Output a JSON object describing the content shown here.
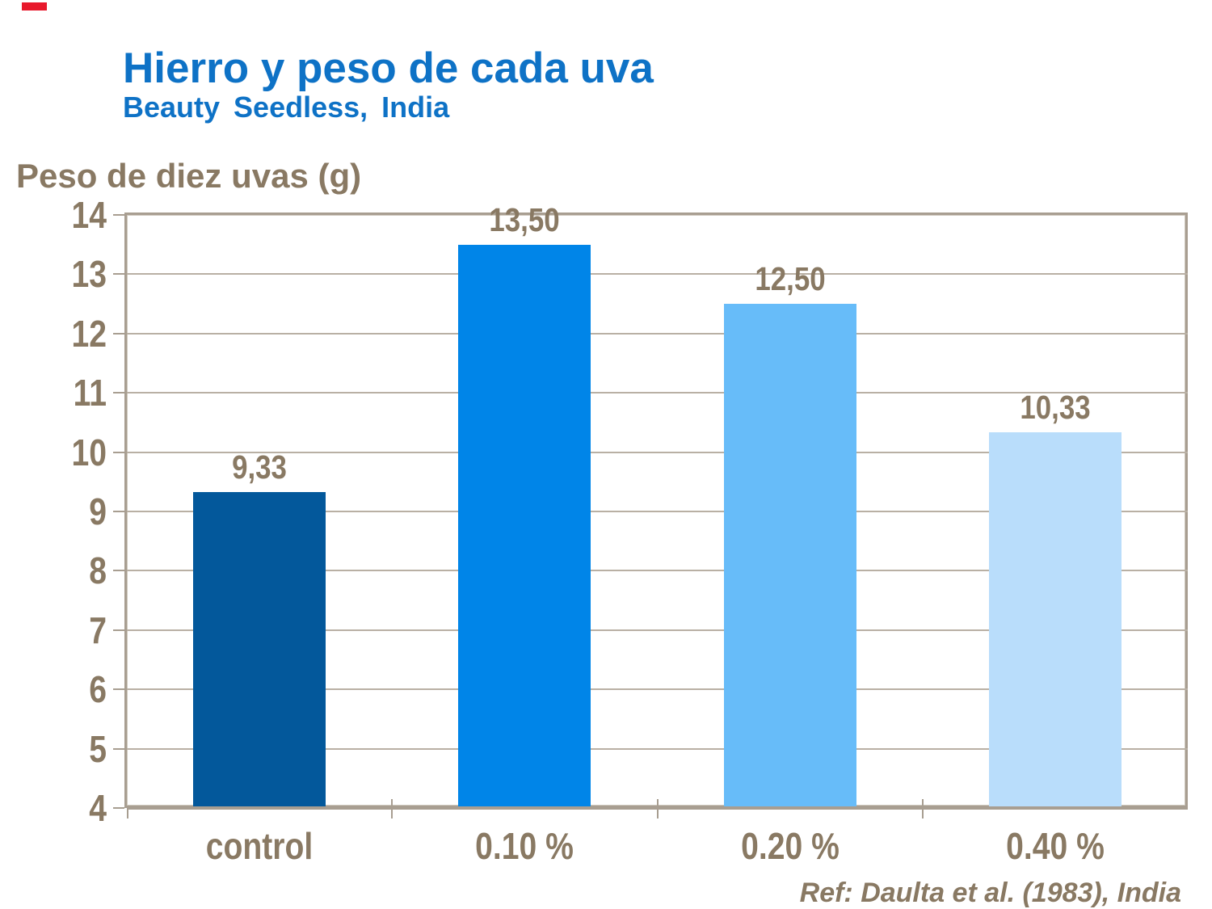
{
  "marker": {
    "color": "#e8192c"
  },
  "header": {
    "title": "Hierro y peso de cada uva",
    "subtitle": "Beauty Seedless, India",
    "color": "#0e72c6"
  },
  "axis_title": "Peso de diez uvas (g)",
  "footer": {
    "ref": "Ref: Daulta et al. (1983), India"
  },
  "colors": {
    "text_brown": "#897963",
    "grid": "#b9b0a4",
    "frame": "#a89e91"
  },
  "chart_data": {
    "type": "bar",
    "title": "Hierro y peso de cada uva",
    "subtitle": "Beauty Seedless, India",
    "ylabel": "Peso de diez uvas (g)",
    "xlabel": "",
    "categories": [
      "control",
      "0.10 %",
      "0.20 %",
      "0.40 %"
    ],
    "values": [
      9.33,
      13.5,
      12.5,
      10.33
    ],
    "value_labels": [
      "9,33",
      "13,50",
      "12,50",
      "10,33"
    ],
    "bar_colors": [
      "#03589b",
      "#0085e8",
      "#67bcf9",
      "#b9ddfb"
    ],
    "ylim": [
      4,
      14
    ],
    "yticks": [
      4,
      5,
      6,
      7,
      8,
      9,
      10,
      11,
      12,
      13,
      14
    ],
    "grid": true,
    "legend": false,
    "annotation": "Ref: Daulta et al. (1983), India"
  }
}
